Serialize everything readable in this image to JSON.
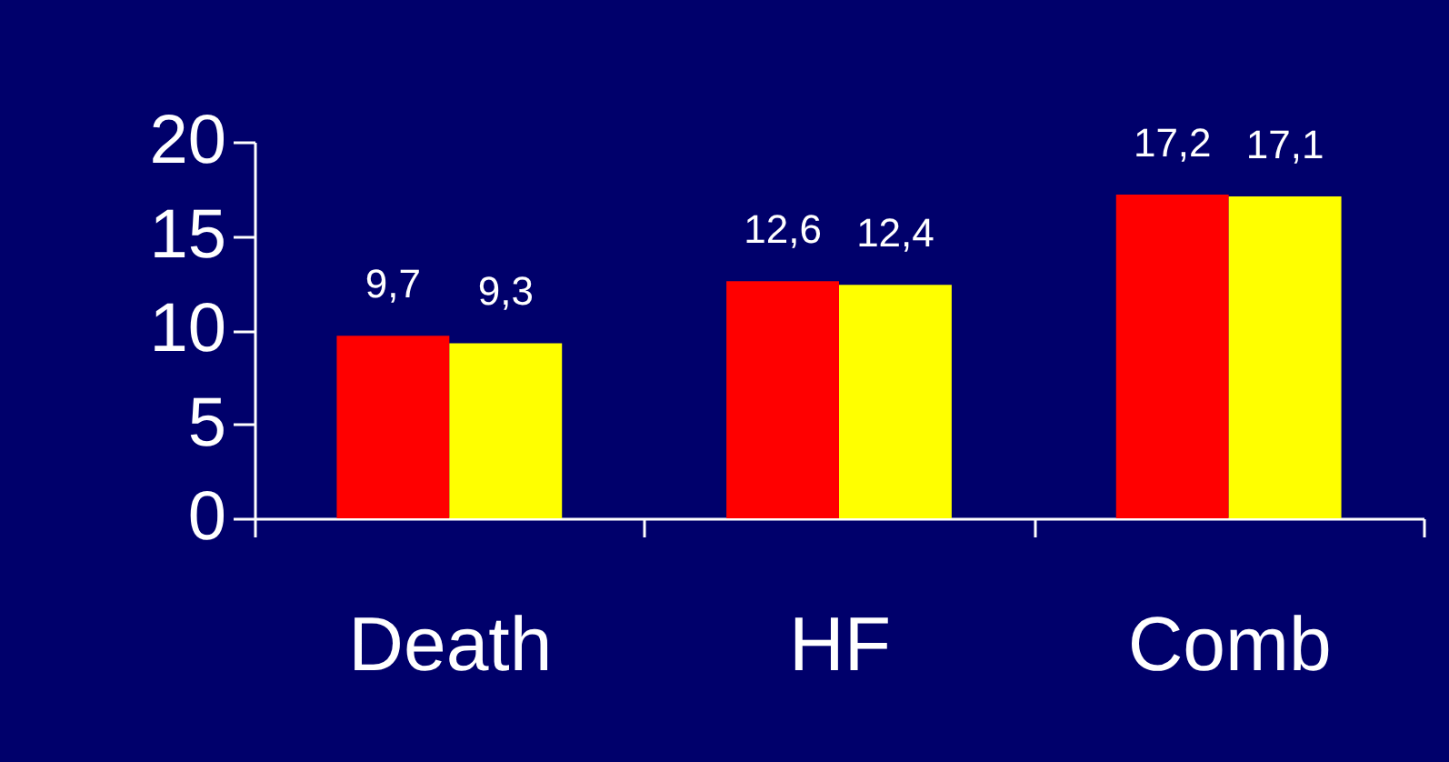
{
  "chart_data": {
    "type": "bar",
    "categories": [
      "Death",
      "HF",
      "Comb"
    ],
    "series": [
      {
        "color": "#ff0000",
        "values": [
          9.7,
          12.6,
          17.2
        ],
        "value_labels": [
          "9,7",
          "12,6",
          "17,2"
        ]
      },
      {
        "color": "#ffff00",
        "values": [
          9.3,
          12.4,
          17.1
        ],
        "value_labels": [
          "9,3",
          "12,4",
          "17,1"
        ]
      }
    ],
    "ylim": [
      0,
      20
    ],
    "yticks": [
      0,
      5,
      10,
      15,
      20
    ],
    "grid": false,
    "legend": false
  }
}
